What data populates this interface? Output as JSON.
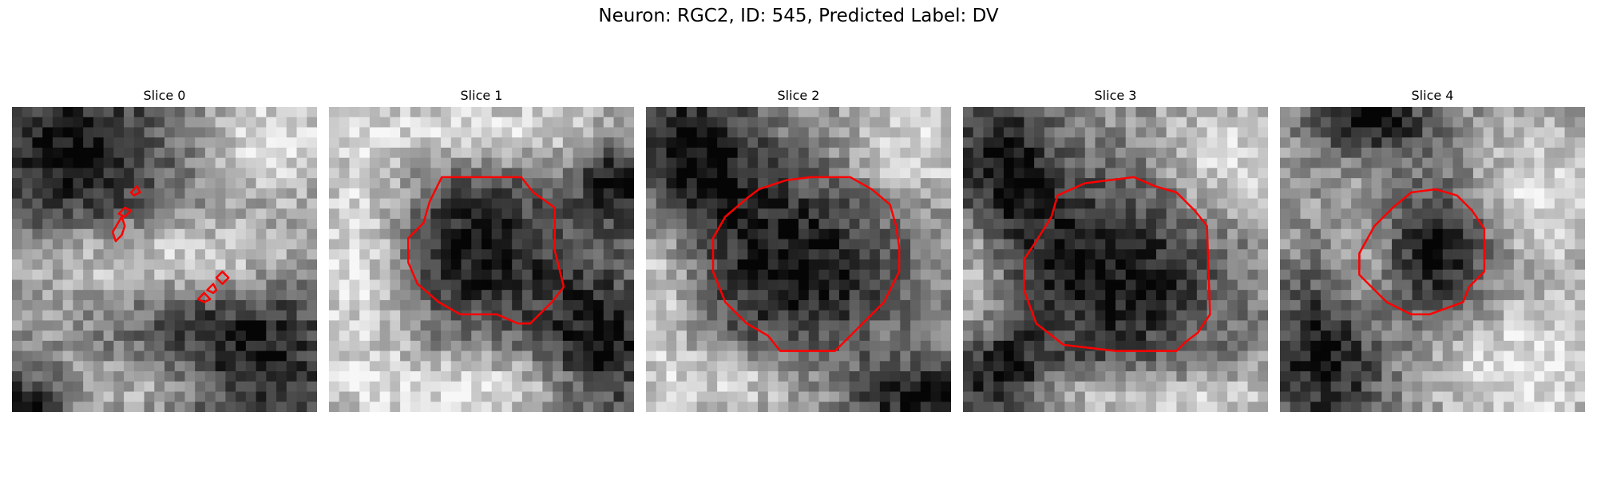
{
  "figure": {
    "title": "Neuron: RGC2, ID: 545, Predicted Label: DV"
  },
  "panels": [
    {
      "title": "Slice 0",
      "dark_blobs": [
        [
          0.18,
          0.16,
          0.26,
          0.24
        ],
        [
          0.76,
          0.83,
          0.27,
          0.22
        ],
        [
          0.05,
          0.98,
          0.1,
          0.08
        ]
      ],
      "bright_blobs": [
        [
          0.28,
          0.5,
          0.22,
          0.1
        ],
        [
          0.7,
          0.5,
          0.2,
          0.09
        ],
        [
          0.85,
          0.12,
          0.14,
          0.12
        ],
        [
          0.5,
          0.92,
          0.2,
          0.08
        ]
      ],
      "contours": [
        [
          [
            0.33,
            0.41
          ],
          [
            0.36,
            0.36
          ],
          [
            0.37,
            0.39
          ],
          [
            0.36,
            0.42
          ],
          [
            0.34,
            0.44
          ],
          [
            0.33,
            0.41
          ]
        ],
        [
          [
            0.35,
            0.35
          ],
          [
            0.37,
            0.33
          ],
          [
            0.39,
            0.34
          ],
          [
            0.37,
            0.36
          ],
          [
            0.35,
            0.35
          ]
        ],
        [
          [
            0.39,
            0.28
          ],
          [
            0.41,
            0.26
          ],
          [
            0.42,
            0.28
          ],
          [
            0.4,
            0.29
          ],
          [
            0.39,
            0.28
          ]
        ],
        [
          [
            0.61,
            0.63
          ],
          [
            0.63,
            0.61
          ],
          [
            0.65,
            0.63
          ],
          [
            0.63,
            0.64
          ],
          [
            0.61,
            0.63
          ]
        ],
        [
          [
            0.64,
            0.6
          ],
          [
            0.66,
            0.58
          ],
          [
            0.67,
            0.6
          ],
          [
            0.66,
            0.61
          ],
          [
            0.64,
            0.6
          ]
        ],
        [
          [
            0.67,
            0.56
          ],
          [
            0.69,
            0.54
          ],
          [
            0.71,
            0.56
          ],
          [
            0.69,
            0.58
          ],
          [
            0.67,
            0.56
          ]
        ]
      ]
    },
    {
      "title": "Slice 1",
      "dark_blobs": [
        [
          0.5,
          0.47,
          0.2,
          0.2
        ],
        [
          0.9,
          0.8,
          0.15,
          0.2
        ],
        [
          0.95,
          0.25,
          0.1,
          0.1
        ]
      ],
      "bright_blobs": [
        [
          0.1,
          0.5,
          0.12,
          0.3
        ],
        [
          0.5,
          0.08,
          0.3,
          0.08
        ],
        [
          0.5,
          0.92,
          0.3,
          0.08
        ]
      ],
      "contours": [
        [
          [
            0.37,
            0.23
          ],
          [
            0.63,
            0.23
          ],
          [
            0.67,
            0.28
          ],
          [
            0.74,
            0.33
          ],
          [
            0.74,
            0.47
          ],
          [
            0.77,
            0.59
          ],
          [
            0.73,
            0.64
          ],
          [
            0.66,
            0.71
          ],
          [
            0.62,
            0.71
          ],
          [
            0.55,
            0.68
          ],
          [
            0.43,
            0.68
          ],
          [
            0.36,
            0.64
          ],
          [
            0.29,
            0.58
          ],
          [
            0.26,
            0.51
          ],
          [
            0.26,
            0.43
          ],
          [
            0.31,
            0.38
          ],
          [
            0.33,
            0.31
          ],
          [
            0.37,
            0.23
          ]
        ]
      ]
    },
    {
      "title": "Slice 2",
      "dark_blobs": [
        [
          0.5,
          0.52,
          0.25,
          0.25
        ],
        [
          0.15,
          0.15,
          0.15,
          0.18
        ],
        [
          0.9,
          0.95,
          0.15,
          0.08
        ]
      ],
      "bright_blobs": [
        [
          0.85,
          0.15,
          0.15,
          0.12
        ],
        [
          0.3,
          0.9,
          0.2,
          0.08
        ],
        [
          0.05,
          0.6,
          0.08,
          0.2
        ]
      ],
      "contours": [
        [
          [
            0.37,
            0.27
          ],
          [
            0.46,
            0.24
          ],
          [
            0.54,
            0.23
          ],
          [
            0.67,
            0.23
          ],
          [
            0.74,
            0.27
          ],
          [
            0.8,
            0.32
          ],
          [
            0.82,
            0.39
          ],
          [
            0.83,
            0.46
          ],
          [
            0.83,
            0.54
          ],
          [
            0.8,
            0.6
          ],
          [
            0.78,
            0.64
          ],
          [
            0.71,
            0.71
          ],
          [
            0.64,
            0.78
          ],
          [
            0.62,
            0.8
          ],
          [
            0.44,
            0.8
          ],
          [
            0.4,
            0.75
          ],
          [
            0.33,
            0.71
          ],
          [
            0.26,
            0.64
          ],
          [
            0.22,
            0.54
          ],
          [
            0.22,
            0.43
          ],
          [
            0.26,
            0.36
          ],
          [
            0.33,
            0.3
          ],
          [
            0.37,
            0.27
          ]
        ]
      ]
    },
    {
      "title": "Slice 3",
      "dark_blobs": [
        [
          0.5,
          0.55,
          0.27,
          0.25
        ],
        [
          0.12,
          0.2,
          0.13,
          0.18
        ],
        [
          0.1,
          0.9,
          0.12,
          0.12
        ]
      ],
      "bright_blobs": [
        [
          0.85,
          0.2,
          0.15,
          0.15
        ],
        [
          0.6,
          0.95,
          0.3,
          0.06
        ],
        [
          0.05,
          0.55,
          0.06,
          0.2
        ]
      ],
      "contours": [
        [
          [
            0.29,
            0.36
          ],
          [
            0.31,
            0.29
          ],
          [
            0.4,
            0.25
          ],
          [
            0.56,
            0.23
          ],
          [
            0.63,
            0.26
          ],
          [
            0.7,
            0.28
          ],
          [
            0.76,
            0.34
          ],
          [
            0.8,
            0.39
          ],
          [
            0.81,
            0.68
          ],
          [
            0.77,
            0.74
          ],
          [
            0.73,
            0.77
          ],
          [
            0.7,
            0.8
          ],
          [
            0.5,
            0.8
          ],
          [
            0.33,
            0.78
          ],
          [
            0.24,
            0.71
          ],
          [
            0.2,
            0.6
          ],
          [
            0.2,
            0.5
          ],
          [
            0.24,
            0.44
          ],
          [
            0.29,
            0.36
          ]
        ]
      ]
    },
    {
      "title": "Slice 4",
      "dark_blobs": [
        [
          0.15,
          0.82,
          0.15,
          0.2
        ],
        [
          0.5,
          0.48,
          0.15,
          0.15
        ],
        [
          0.3,
          0.05,
          0.15,
          0.08
        ]
      ],
      "bright_blobs": [
        [
          0.8,
          0.85,
          0.2,
          0.15
        ],
        [
          0.85,
          0.3,
          0.12,
          0.15
        ],
        [
          0.3,
          0.55,
          0.08,
          0.15
        ]
      ],
      "contours": [
        [
          [
            0.37,
            0.33
          ],
          [
            0.43,
            0.28
          ],
          [
            0.51,
            0.27
          ],
          [
            0.58,
            0.29
          ],
          [
            0.63,
            0.34
          ],
          [
            0.67,
            0.4
          ],
          [
            0.67,
            0.54
          ],
          [
            0.62,
            0.59
          ],
          [
            0.6,
            0.64
          ],
          [
            0.49,
            0.68
          ],
          [
            0.43,
            0.68
          ],
          [
            0.35,
            0.64
          ],
          [
            0.26,
            0.55
          ],
          [
            0.26,
            0.48
          ],
          [
            0.31,
            0.39
          ],
          [
            0.37,
            0.33
          ]
        ]
      ]
    }
  ],
  "colors": {
    "contour": "#ff0000",
    "background": "#ffffff"
  }
}
